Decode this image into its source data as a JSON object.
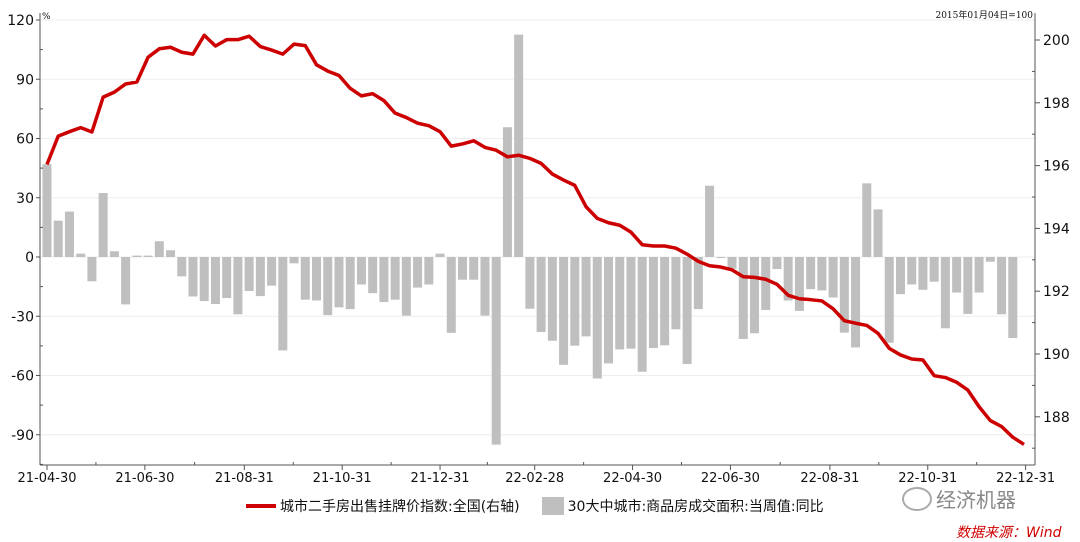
{
  "chart_data": {
    "type": "bar+line",
    "left_axis": {
      "unit_label": "%",
      "ticks": [
        120,
        90,
        60,
        30,
        0,
        -30,
        -60,
        -90
      ],
      "range": [
        -105,
        120
      ]
    },
    "right_axis": {
      "note": "2015年01月04日=100",
      "ticks": [
        200,
        198,
        196,
        194,
        192,
        190,
        188
      ],
      "range": [
        186.5,
        200.8
      ]
    },
    "x_ticks": [
      "21-04-30",
      "21-06-30",
      "21-08-31",
      "21-10-31",
      "21-12-31",
      "22-02-28",
      "22-04-30",
      "22-06-30",
      "22-08-31",
      "22-10-31",
      "22-12-31"
    ],
    "series": [
      {
        "name": "城市二手房出售挂牌价指数:全国(右轴)",
        "type": "line",
        "axis": "right",
        "color": "#cc0000",
        "values": [
          196.04,
          196.94,
          197.08,
          197.21,
          197.07,
          198.18,
          198.34,
          198.6,
          198.66,
          199.45,
          199.72,
          199.77,
          199.61,
          199.55,
          200.15,
          199.81,
          200.01,
          200.01,
          200.12,
          199.79,
          199.68,
          199.55,
          199.87,
          199.82,
          199.21,
          199.01,
          198.87,
          198.46,
          198.22,
          198.29,
          198.07,
          197.67,
          197.53,
          197.35,
          197.27,
          197.08,
          196.62,
          196.69,
          196.79,
          196.58,
          196.49,
          196.28,
          196.33,
          196.23,
          196.07,
          195.73,
          195.54,
          195.37,
          194.69,
          194.32,
          194.18,
          194.1,
          193.88,
          193.48,
          193.44,
          193.44,
          193.37,
          193.18,
          192.95,
          192.81,
          192.77,
          192.68,
          192.46,
          192.44,
          192.38,
          192.22,
          191.87,
          191.76,
          191.73,
          191.69,
          191.44,
          191.06,
          190.98,
          190.91,
          190.66,
          190.18,
          189.97,
          189.84,
          189.81,
          189.31,
          189.25,
          189.1,
          188.85,
          188.32,
          187.88,
          187.69,
          187.35,
          187.12
        ]
      },
      {
        "name": "30大中城市:商品房成交面积:当周值:同比",
        "type": "bar",
        "axis": "left",
        "color": "#bfbfbf",
        "values": [
          47,
          18.4,
          23,
          1.7,
          -12.3,
          32.4,
          2.9,
          -24,
          0.7,
          0.7,
          8,
          3.4,
          -9.8,
          -20,
          -22.3,
          -23.8,
          -20.8,
          -29,
          -17.2,
          -19.8,
          -14.5,
          -47.3,
          -3.2,
          -21.6,
          -22,
          -29.4,
          -25.5,
          -26.4,
          -13.9,
          -18.3,
          -22.8,
          -21.6,
          -29.7,
          -15.5,
          -13.9,
          1.7,
          -38.4,
          -11.5,
          -11.5,
          -29.7,
          -95,
          65.7,
          112.6,
          -26.2,
          -38,
          -42.4,
          -54.6,
          -44.9,
          -40.2,
          -61.5,
          -53.9,
          -46.8,
          -46.4,
          -58.1,
          -46.1,
          -44.7,
          -36.6,
          -54.2,
          -26.4,
          36.1,
          -0.5,
          -5.9,
          -41.5,
          -38.6,
          -26.8,
          -6.1,
          -22,
          -27.3,
          -16.3,
          -16.9,
          -20.5,
          -38.3,
          -45.8,
          37.3,
          24.1,
          -43.4,
          -18.8,
          -13.9,
          -16.6,
          -12.5,
          -36.1,
          -18,
          -28.8,
          -18,
          -2.4,
          -29,
          -41
        ]
      }
    ],
    "legend_placement": "bottom",
    "grid": true
  },
  "watermark": "经济机器",
  "source": "数据来源：Wind"
}
